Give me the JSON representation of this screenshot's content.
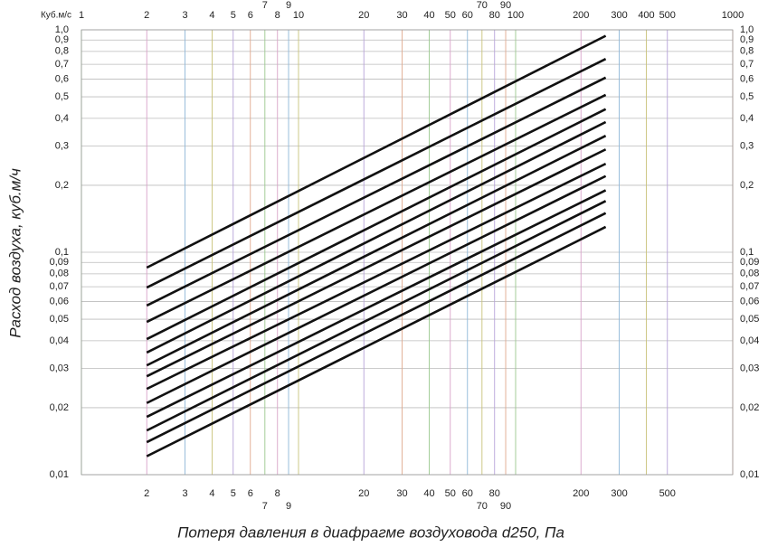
{
  "chart_data": {
    "type": "line",
    "unit_label": "Куб.м/с",
    "x_label": "Потеря давления в диафрагме воздуховода d250, Па",
    "y_label": "Расход воздуха, куб.м/ч",
    "log_x": true,
    "log_y": true,
    "grid": true,
    "xlim": [
      1,
      1000
    ],
    "ylim": [
      0.01,
      1
    ],
    "xticks": [
      1,
      2,
      3,
      4,
      5,
      6,
      7,
      8,
      9,
      10,
      20,
      30,
      40,
      50,
      60,
      70,
      80,
      90,
      100,
      200,
      300,
      400,
      500,
      1000
    ],
    "xticks_bottom": [
      2,
      3,
      4,
      5,
      6,
      7,
      8,
      9,
      20,
      30,
      40,
      50,
      60,
      70,
      80,
      90,
      200,
      300,
      500
    ],
    "yticks": [
      {
        "value": 1,
        "label": "1,0"
      },
      {
        "value": 0.9,
        "label": "0,9"
      },
      {
        "value": 0.8,
        "label": "0,8"
      },
      {
        "value": 0.7,
        "label": "0,7"
      },
      {
        "value": 0.6,
        "label": "0,6"
      },
      {
        "value": 0.5,
        "label": "0,5"
      },
      {
        "value": 0.4,
        "label": "0,4"
      },
      {
        "value": 0.3,
        "label": "0,3"
      },
      {
        "value": 0.2,
        "label": "0,2"
      },
      {
        "value": 0.1,
        "label": "0,1"
      },
      {
        "value": 0.09,
        "label": "0,09"
      },
      {
        "value": 0.08,
        "label": "0,08"
      },
      {
        "value": 0.07,
        "label": "0,07"
      },
      {
        "value": 0.06,
        "label": "0,06"
      },
      {
        "value": 0.05,
        "label": "0,05"
      },
      {
        "value": 0.04,
        "label": "0,04"
      },
      {
        "value": 0.03,
        "label": "0,03"
      },
      {
        "value": 0.02,
        "label": "0,02"
      },
      {
        "value": 0.01,
        "label": "0,01"
      }
    ],
    "x": [
      2,
      260
    ],
    "series": [
      {
        "color": "#111",
        "values": [
          0.0853,
          0.94
        ]
      },
      {
        "color": "#111",
        "values": [
          0.0694,
          0.74
        ]
      },
      {
        "color": "#111",
        "values": [
          0.0576,
          0.61
        ]
      },
      {
        "color": "#111",
        "values": [
          0.0486,
          0.51
        ]
      },
      {
        "color": "#111",
        "values": [
          0.0407,
          0.44
        ]
      },
      {
        "color": "#111",
        "values": [
          0.0354,
          0.385
        ]
      },
      {
        "color": "#111",
        "values": [
          0.031,
          0.334
        ]
      },
      {
        "color": "#111",
        "values": [
          0.0277,
          0.29
        ]
      },
      {
        "color": "#111",
        "values": [
          0.0243,
          0.25
        ]
      },
      {
        "color": "#111",
        "values": [
          0.021,
          0.22
        ]
      },
      {
        "color": "#111",
        "values": [
          0.0182,
          0.19
        ]
      },
      {
        "color": "#111",
        "values": [
          0.0158,
          0.17
        ]
      },
      {
        "color": "#111",
        "values": [
          0.014,
          0.15
        ]
      },
      {
        "color": "#111",
        "values": [
          0.0121,
          0.13
        ]
      }
    ]
  }
}
